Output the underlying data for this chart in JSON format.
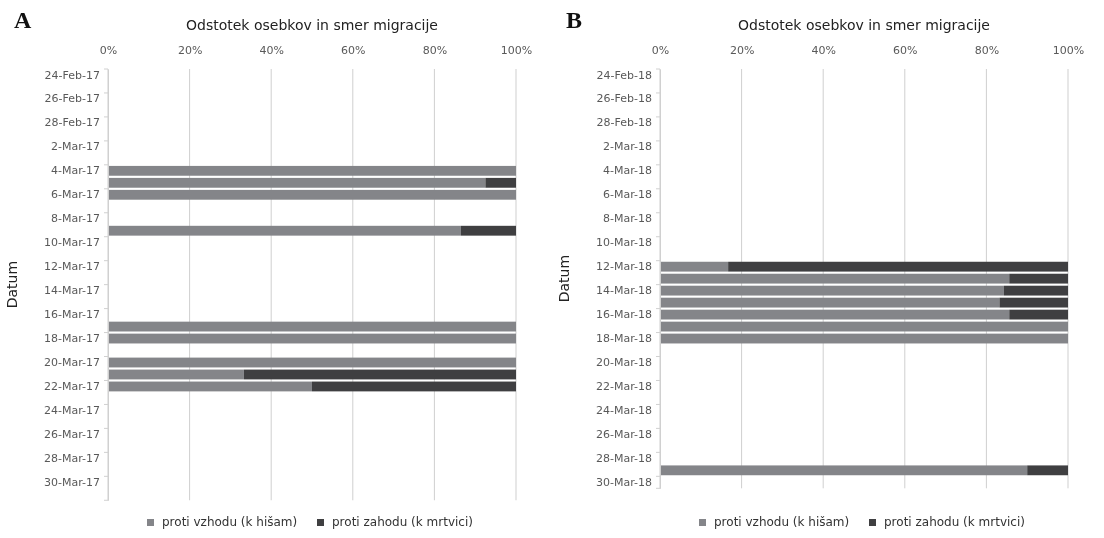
{
  "chart_data": [
    {
      "type": "bar",
      "orientation": "horizontal",
      "stacked": true,
      "annotations": [
        "A"
      ],
      "xlabel": "Odstotek osebkov in smer migracije",
      "ylabel": "Datum",
      "categories": [
        "24-Feb-17",
        null,
        "26-Feb-17",
        null,
        "28-Feb-17",
        null,
        "2-Mar-17",
        null,
        "4-Mar-17",
        null,
        "6-Mar-17",
        null,
        "8-Mar-17",
        null,
        "10-Mar-17",
        null,
        "12-Mar-17",
        null,
        "14-Mar-17",
        null,
        "16-Mar-17",
        null,
        "18-Mar-17",
        null,
        "20-Mar-17",
        null,
        "22-Mar-17",
        null,
        "24-Mar-17",
        null,
        "26-Mar-17",
        null,
        "28-Mar-17",
        null,
        "30-Mar-17",
        null
      ],
      "series": [
        {
          "name": "proti vzhodu (k hišam)",
          "color": "#848589",
          "values": [
            null,
            null,
            null,
            null,
            null,
            null,
            null,
            null,
            100,
            92.5,
            100,
            null,
            null,
            86.5,
            null,
            null,
            null,
            null,
            null,
            null,
            null,
            100,
            100,
            null,
            100,
            33.3,
            50,
            null,
            null,
            null,
            null,
            null,
            null,
            null,
            null,
            null
          ]
        },
        {
          "name": "proti zahodu (k mrtvici)",
          "color": "#3f3f41",
          "values": [
            null,
            null,
            null,
            null,
            null,
            null,
            null,
            null,
            0,
            7.5,
            0,
            null,
            null,
            13.5,
            null,
            null,
            null,
            null,
            null,
            null,
            null,
            0,
            0,
            null,
            0,
            66.7,
            50,
            null,
            null,
            null,
            null,
            null,
            null,
            null,
            null,
            null
          ]
        }
      ],
      "xlim": [
        0,
        100
      ],
      "xticks": [
        {
          "value": 0,
          "label": "0%"
        },
        {
          "value": 20,
          "label": "20%"
        },
        {
          "value": 40,
          "label": "40%"
        },
        {
          "value": 60,
          "label": "60%"
        },
        {
          "value": 80,
          "label": "80%"
        },
        {
          "value": 100,
          "label": "100%"
        }
      ],
      "grid": "x",
      "legend": "bottom"
    },
    {
      "type": "bar",
      "orientation": "horizontal",
      "stacked": true,
      "annotations": [
        "B"
      ],
      "xlabel": "Odstotek osebkov in smer migracije",
      "ylabel": "Datum",
      "categories": [
        "24-Feb-18",
        null,
        "26-Feb-18",
        null,
        "28-Feb-18",
        null,
        "2-Mar-18",
        null,
        "4-Mar-18",
        null,
        "6-Mar-18",
        null,
        "8-Mar-18",
        null,
        "10-Mar-18",
        null,
        "12-Mar-18",
        null,
        "14-Mar-18",
        null,
        "16-Mar-18",
        null,
        "18-Mar-18",
        null,
        "20-Mar-18",
        null,
        "22-Mar-18",
        null,
        "24-Mar-18",
        null,
        "26-Mar-18",
        null,
        "28-Mar-18",
        null,
        "30-Mar-18"
      ],
      "series": [
        {
          "name": "proti vzhodu (k hišam)",
          "color": "#848589",
          "values": [
            null,
            null,
            null,
            null,
            null,
            null,
            null,
            null,
            null,
            null,
            null,
            null,
            null,
            null,
            null,
            null,
            16.7,
            85.6,
            84.3,
            83.2,
            85.6,
            100,
            100,
            null,
            null,
            null,
            null,
            null,
            null,
            null,
            null,
            null,
            null,
            90,
            null
          ]
        },
        {
          "name": "proti zahodu (k mrtvici)",
          "color": "#3f3f41",
          "values": [
            null,
            null,
            null,
            null,
            null,
            null,
            null,
            null,
            null,
            null,
            null,
            null,
            null,
            null,
            null,
            null,
            83.3,
            14.4,
            15.7,
            16.8,
            14.4,
            0,
            0,
            null,
            null,
            null,
            null,
            null,
            null,
            null,
            null,
            null,
            null,
            10,
            null
          ]
        }
      ],
      "xlim": [
        0,
        100
      ],
      "xticks": [
        {
          "value": 0,
          "label": "0%"
        },
        {
          "value": 20,
          "label": "20%"
        },
        {
          "value": 40,
          "label": "40%"
        },
        {
          "value": 60,
          "label": "60%"
        },
        {
          "value": 80,
          "label": "80%"
        },
        {
          "value": 100,
          "label": "100%"
        }
      ],
      "grid": "x",
      "legend": "bottom"
    }
  ]
}
